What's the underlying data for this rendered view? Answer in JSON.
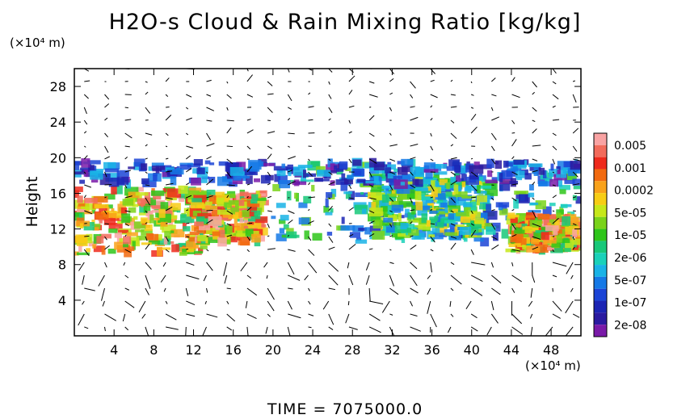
{
  "chart_data": {
    "type": "heatmap",
    "title": "H2O-s Cloud & Rain Mixing Ratio [kg/kg]",
    "ylabel": "Height",
    "xlabel": "",
    "x_multiplier": "(×10⁴ m)",
    "y_multiplier": "(×10⁴ m)",
    "xlim": [
      0,
      51
    ],
    "ylim": [
      0,
      30
    ],
    "x_ticks": [
      "4",
      "8",
      "12",
      "16",
      "20",
      "24",
      "28",
      "32",
      "36",
      "40",
      "44",
      "48"
    ],
    "x_tick_values": [
      4,
      8,
      12,
      16,
      20,
      24,
      28,
      32,
      36,
      40,
      44,
      48
    ],
    "y_ticks": [
      "4",
      "8",
      "12",
      "16",
      "20",
      "24",
      "28"
    ],
    "y_tick_values": [
      4,
      8,
      12,
      16,
      20,
      24,
      28
    ],
    "colorbar": {
      "labels": [
        "0.005",
        "0.001",
        "0.0002",
        "5e-05",
        "1e-05",
        "2e-06",
        "5e-07",
        "1e-07",
        "2e-08"
      ],
      "colors": [
        "#f9a3a3",
        "#f26b5b",
        "#ee2a1c",
        "#f26a0f",
        "#f9a21a",
        "#f7cd14",
        "#c6e81a",
        "#7ad31a",
        "#2ec51a",
        "#18c879",
        "#1ad1b9",
        "#19b3e6",
        "#1579e6",
        "#1b44d6",
        "#1b24b4",
        "#2a1aa0",
        "#7a1aa8"
      ]
    },
    "cloud_regions": [
      {
        "x0": 0.2,
        "x1": 13.5,
        "y0": 9.2,
        "y1": 16.5,
        "level": "high"
      },
      {
        "x0": 12,
        "x1": 19,
        "y0": 10.5,
        "y1": 16,
        "level": "high"
      },
      {
        "x0": 20,
        "x1": 51,
        "y0": 10.5,
        "y1": 19.5,
        "level": "mid"
      },
      {
        "x0": 30,
        "x1": 42,
        "y0": 11,
        "y1": 17.5,
        "level": "mid-high"
      },
      {
        "x0": 44,
        "x1": 51,
        "y0": 9.5,
        "y1": 13.5,
        "level": "high"
      },
      {
        "x0": 0,
        "x1": 51,
        "y0": 17,
        "y1": 19.5,
        "level": "low"
      }
    ],
    "grid": false,
    "legend": "colorbar-right",
    "overlay": "wind vectors"
  },
  "footer": "TIME  =  7075000.0"
}
